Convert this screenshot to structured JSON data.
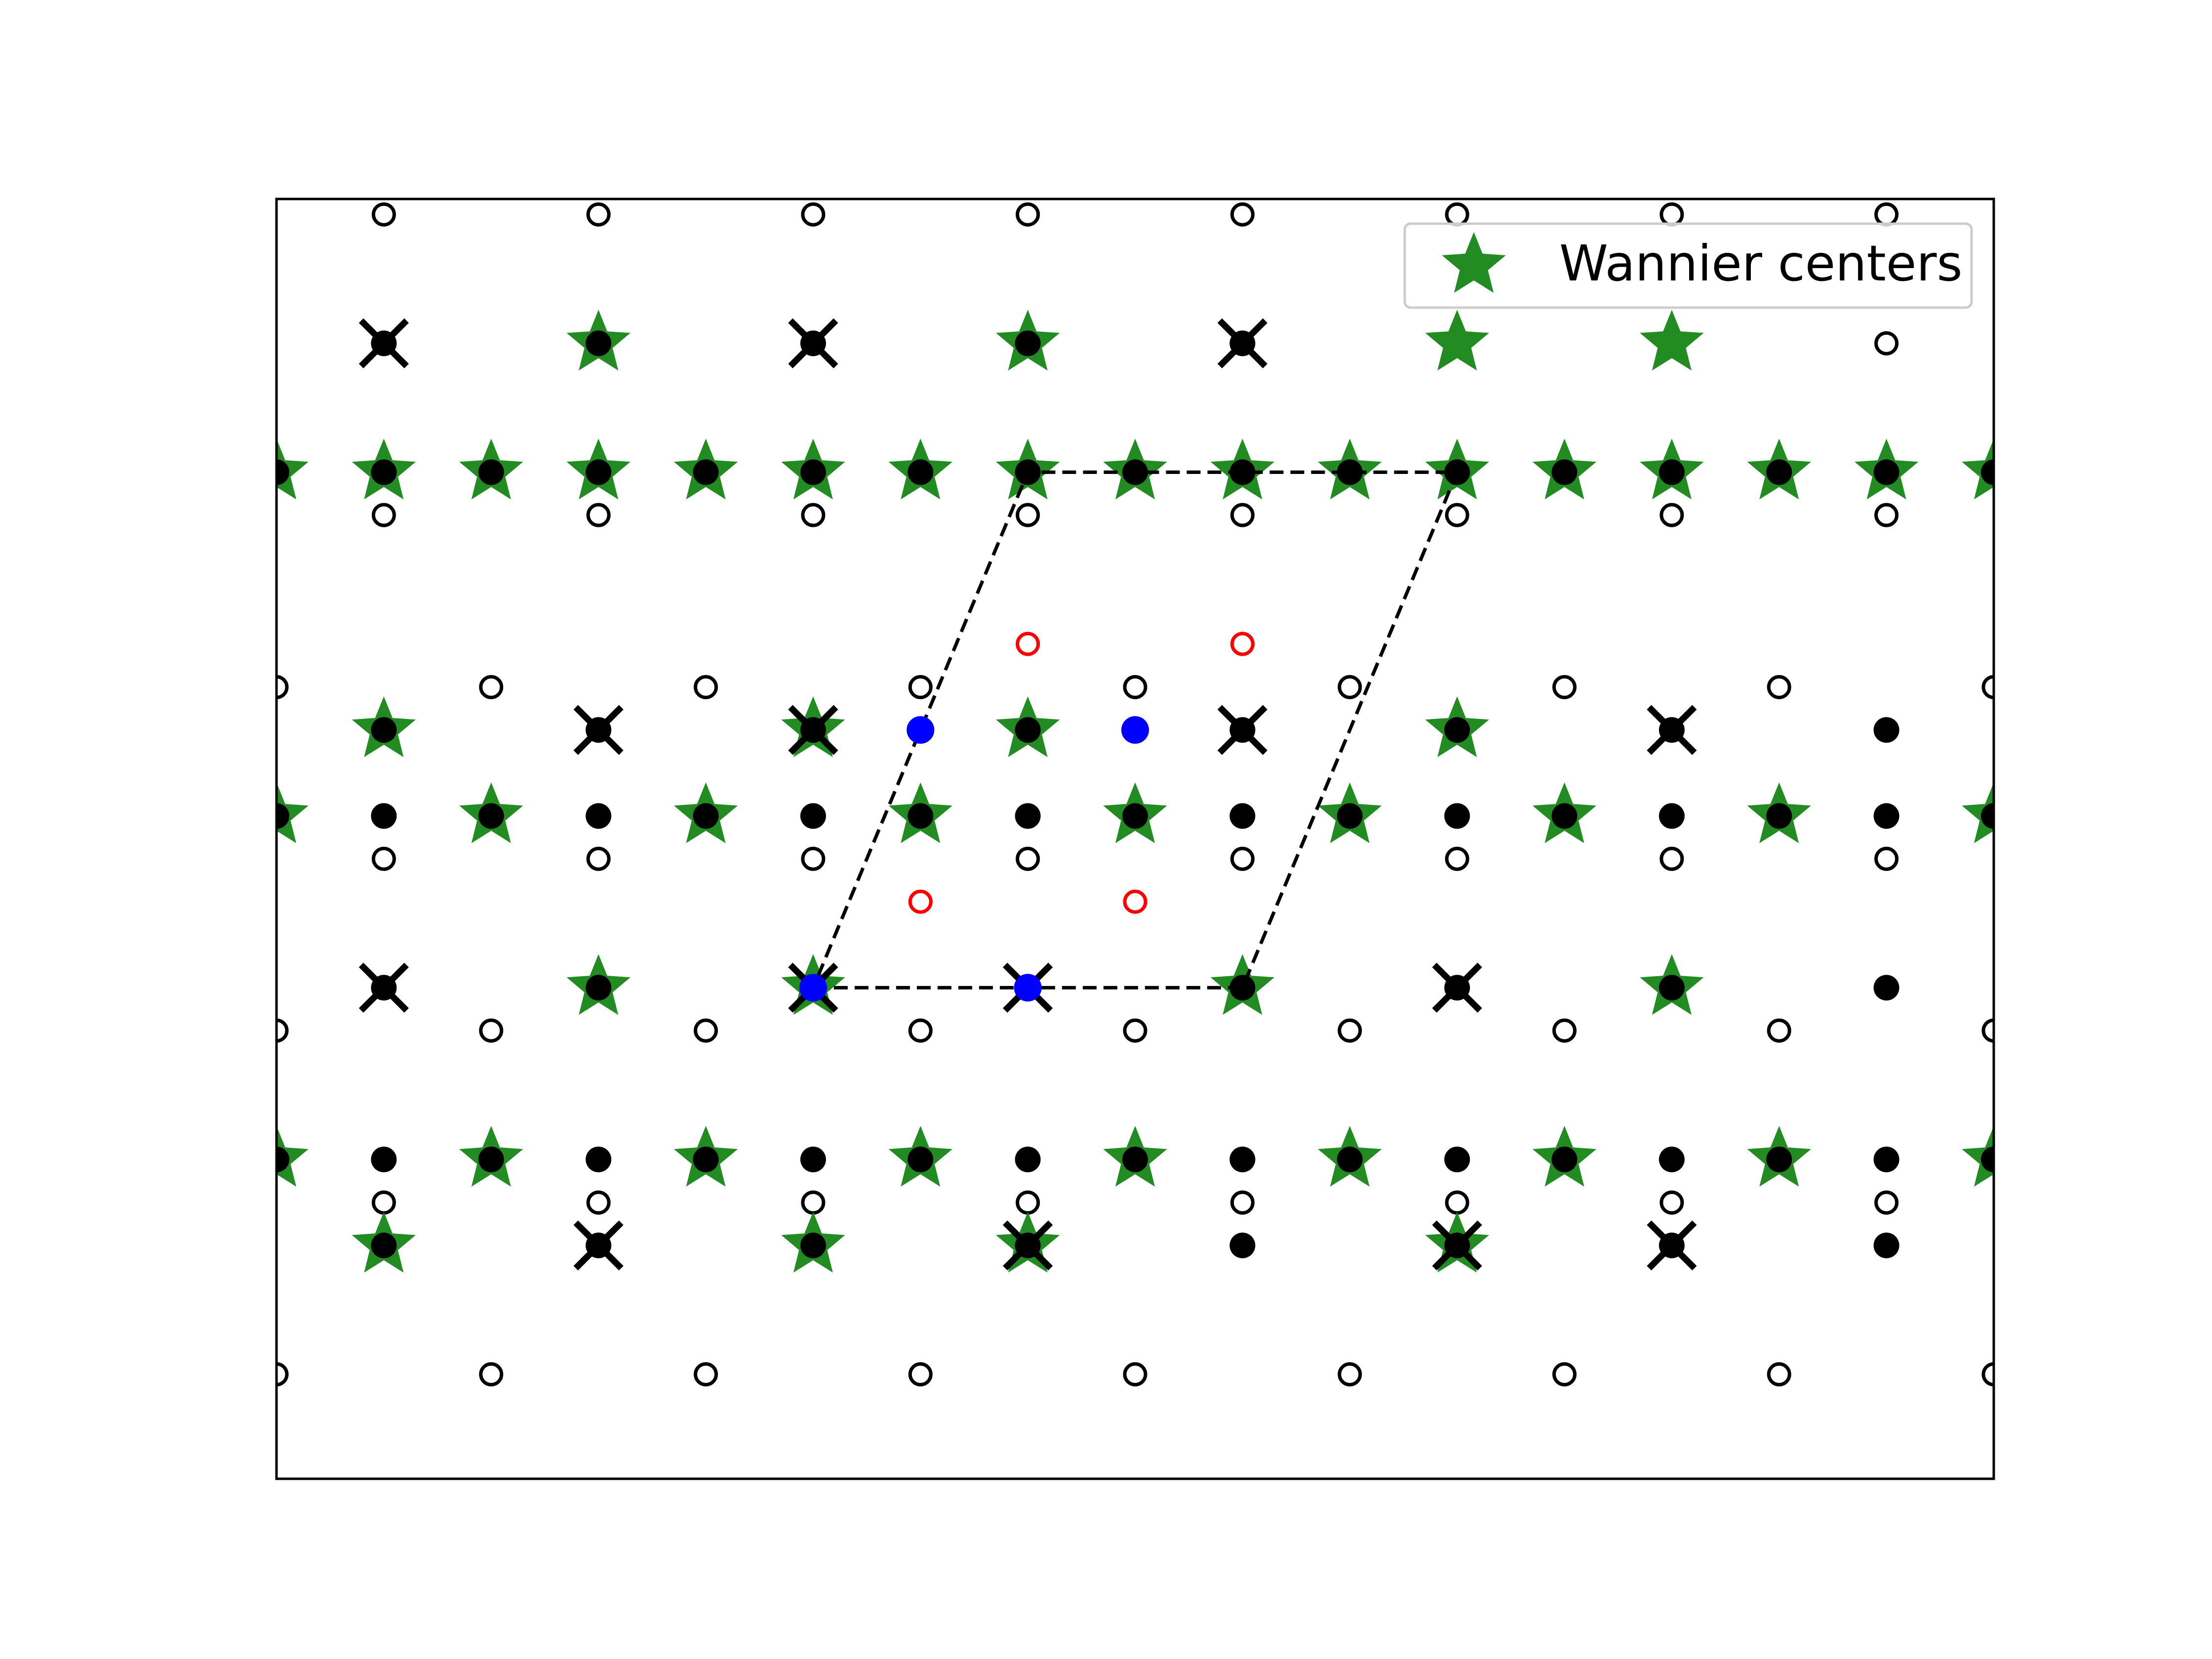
{
  "chart_data": {
    "type": "scatter",
    "title": "",
    "xlabel": "",
    "ylabel": "",
    "xlim": [
      -2.5,
      5.5
    ],
    "ylim": [
      -1.65,
      2.65
    ],
    "axis_ticks": false,
    "grid": false,
    "legend_position": "top-right",
    "legend": [
      {
        "label": "Wannier centers",
        "marker": "star",
        "color": "#228b22"
      }
    ],
    "hexagonal_sites": {
      "marker": "open-circle",
      "color": "#000000",
      "rows": [
        {
          "y": 2.598,
          "x0": -2.0,
          "dx": 1.0,
          "count": 8
        },
        {
          "y": 2.165,
          "x0": -2.0,
          "dx": 1.0,
          "count": 8
        },
        {
          "y": 1.588,
          "x0": -2.0,
          "dx": 1.0,
          "count": 8
        },
        {
          "y": 1.01,
          "x0": -2.5,
          "dx": 1.0,
          "count": 9
        },
        {
          "y": 0.433,
          "x0": -2.0,
          "dx": 1.0,
          "count": 8
        },
        {
          "y": -0.144,
          "x0": -2.5,
          "dx": 1.0,
          "count": 9
        },
        {
          "y": -0.722,
          "x0": -2.0,
          "dx": 1.0,
          "count": 8
        },
        {
          "y": -1.299,
          "x0": -2.5,
          "dx": 1.0,
          "count": 9
        },
        {
          "y": -1.732,
          "x0": -2.0,
          "dx": 1.0,
          "count": 8
        }
      ]
    },
    "kagome_sites": {
      "marker": "filled-circle",
      "color": "#000000",
      "rows": [
        {
          "y": 2.165,
          "x0": -2.0,
          "dx": 1.0,
          "count": 5
        },
        {
          "y": 1.732,
          "x0": -2.5,
          "dx": 0.5,
          "count": 17
        },
        {
          "y": 0.866,
          "x0": -2.0,
          "dx": 1.0,
          "count": 8
        },
        {
          "y": 0.577,
          "x0": -2.5,
          "dx": 0.5,
          "count": 17
        },
        {
          "y": 0.0,
          "x0": -2.0,
          "dx": 1.0,
          "count": 8
        },
        {
          "y": -0.577,
          "x0": -2.5,
          "dx": 0.5,
          "count": 17
        },
        {
          "y": -0.866,
          "x0": -2.0,
          "dx": 1.0,
          "count": 8
        }
      ]
    },
    "vertex_sites": {
      "marker": "x",
      "color": "#000000",
      "points": [
        [
          -2.0,
          2.165
        ],
        [
          0.0,
          2.165
        ],
        [
          2.0,
          2.165
        ],
        [
          -1.0,
          0.866
        ],
        [
          0.0,
          0.866
        ],
        [
          2.0,
          0.866
        ],
        [
          4.0,
          0.866
        ],
        [
          -2.0,
          0.0
        ],
        [
          0.0,
          0.0
        ],
        [
          1.0,
          0.0
        ],
        [
          3.0,
          0.0
        ],
        [
          -1.0,
          -0.866
        ],
        [
          1.0,
          -0.866
        ],
        [
          3.0,
          -0.866
        ],
        [
          4.0,
          -0.866
        ]
      ]
    },
    "wannier_centers": {
      "marker": "star",
      "color": "#228b22",
      "points": [
        [
          -1.0,
          2.165
        ],
        [
          1.0,
          2.165
        ],
        [
          3.0,
          2.165
        ],
        [
          4.0,
          2.165
        ],
        [
          -2.5,
          1.732
        ],
        [
          -2.0,
          1.732
        ],
        [
          -1.5,
          1.732
        ],
        [
          -1.0,
          1.732
        ],
        [
          -0.5,
          1.732
        ],
        [
          0.0,
          1.732
        ],
        [
          0.5,
          1.732
        ],
        [
          1.0,
          1.732
        ],
        [
          1.5,
          1.732
        ],
        [
          2.0,
          1.732
        ],
        [
          2.5,
          1.732
        ],
        [
          3.0,
          1.732
        ],
        [
          3.5,
          1.732
        ],
        [
          4.0,
          1.732
        ],
        [
          4.5,
          1.732
        ],
        [
          5.0,
          1.732
        ],
        [
          5.5,
          1.732
        ],
        [
          -2.0,
          0.866
        ],
        [
          0.0,
          0.866
        ],
        [
          1.0,
          0.866
        ],
        [
          3.0,
          0.866
        ],
        [
          -2.5,
          0.577
        ],
        [
          -1.5,
          0.577
        ],
        [
          -0.5,
          0.577
        ],
        [
          0.5,
          0.577
        ],
        [
          1.5,
          0.577
        ],
        [
          2.5,
          0.577
        ],
        [
          3.5,
          0.577
        ],
        [
          4.5,
          0.577
        ],
        [
          5.5,
          0.577
        ],
        [
          -1.0,
          0.0
        ],
        [
          0.0,
          0.0
        ],
        [
          2.0,
          0.0
        ],
        [
          4.0,
          0.0
        ],
        [
          -2.5,
          -0.577
        ],
        [
          -1.5,
          -0.577
        ],
        [
          -0.5,
          -0.577
        ],
        [
          0.5,
          -0.577
        ],
        [
          1.5,
          -0.577
        ],
        [
          2.5,
          -0.577
        ],
        [
          3.5,
          -0.577
        ],
        [
          4.5,
          -0.577
        ],
        [
          5.5,
          -0.577
        ],
        [
          -2.0,
          -0.866
        ],
        [
          0.0,
          -0.866
        ],
        [
          1.0,
          -0.866
        ],
        [
          3.0,
          -0.866
        ]
      ]
    },
    "highlighted_sites": {
      "marker": "filled-circle",
      "color": "#0000ff",
      "points": [
        [
          0.0,
          0.0
        ],
        [
          0.5,
          0.866
        ],
        [
          1.0,
          0.0
        ],
        [
          1.5,
          0.866
        ]
      ]
    },
    "highlighted_hexagonal_sites": {
      "marker": "open-circle",
      "color": "#ff0000",
      "points": [
        [
          1.0,
          1.155
        ],
        [
          2.0,
          1.155
        ],
        [
          0.5,
          0.289
        ],
        [
          1.5,
          0.289
        ]
      ]
    },
    "unit_cell": {
      "style": "dashed",
      "color": "#000000",
      "vertices": [
        [
          0.0,
          0.0
        ],
        [
          2.0,
          0.0
        ],
        [
          3.0,
          1.732
        ],
        [
          1.0,
          1.732
        ]
      ]
    }
  }
}
